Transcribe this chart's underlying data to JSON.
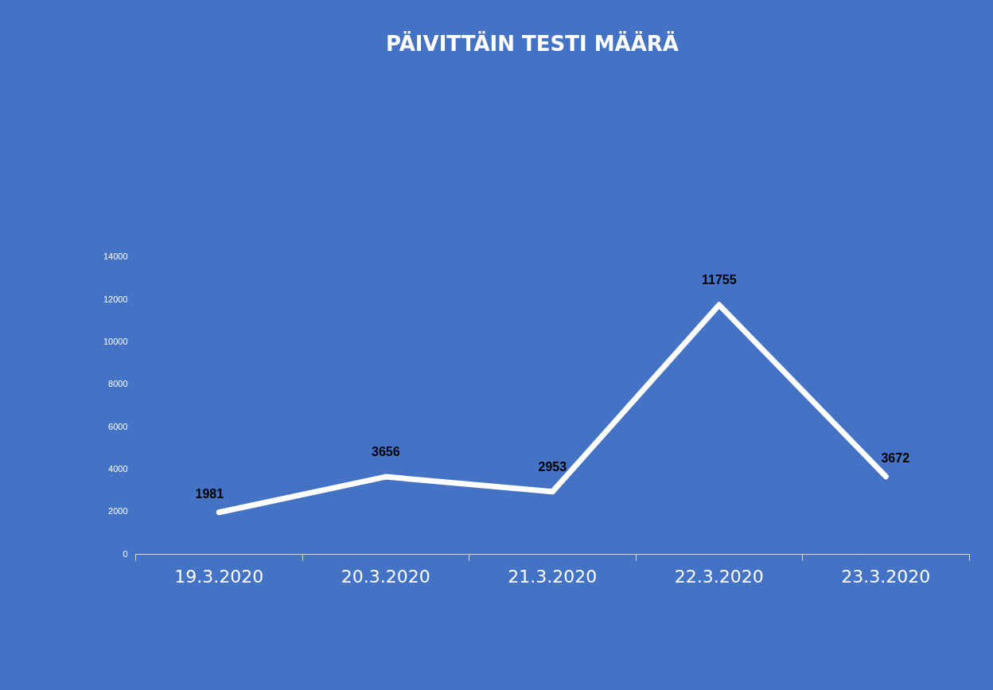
{
  "chart_data": {
    "type": "line",
    "title": "PÄIVITTÄIN TESTI MÄÄRÄ",
    "categories": [
      "19.3.2020",
      "20.3.2020",
      "21.3.2020",
      "22.3.2020",
      "23.3.2020"
    ],
    "series": [
      {
        "color": "#ffffff",
        "values": [
          1981,
          3656,
          2953,
          11755,
          3672
        ]
      }
    ],
    "ylim": [
      0,
      14000
    ],
    "yticks": [
      0,
      2000,
      4000,
      6000,
      8000,
      10000,
      12000,
      14000
    ],
    "grid": false,
    "legend": false,
    "marker": "none",
    "line_style": "solid",
    "data_labels": true
  }
}
